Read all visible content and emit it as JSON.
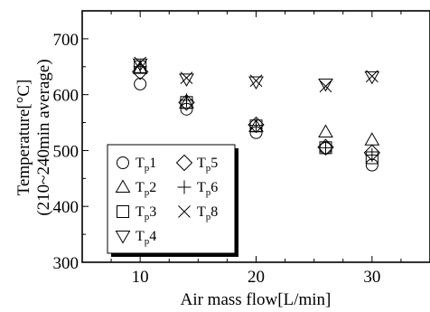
{
  "chart_data": {
    "type": "scatter",
    "xlabel": "Air mass flow[L/min]",
    "ylabel_line1": "Temperature[°C]",
    "ylabel_line2": "(210~240min average)",
    "xlim": [
      5,
      35
    ],
    "ylim": [
      300,
      750
    ],
    "xticks": [
      10,
      20,
      30
    ],
    "yticks": [
      300,
      400,
      500,
      600,
      700
    ],
    "grid": false,
    "legend_position": "bottom-left",
    "series": [
      {
        "name": "Tp1",
        "label_main": "T",
        "label_sub": "p",
        "label_num": "1",
        "marker": "circle",
        "x": [
          10,
          14,
          20,
          26,
          30
        ],
        "y": [
          619,
          574,
          532,
          504,
          474
        ]
      },
      {
        "name": "Tp2",
        "label_main": "T",
        "label_sub": "p",
        "label_num": "2",
        "marker": "triangle-up",
        "x": [
          10,
          14,
          20,
          26,
          30
        ],
        "y": [
          647,
          585,
          543,
          533,
          519
        ]
      },
      {
        "name": "Tp3",
        "label_main": "T",
        "label_sub": "p",
        "label_num": "3",
        "marker": "square",
        "x": [
          10,
          14,
          20,
          26,
          30
        ],
        "y": [
          650,
          586,
          544,
          505,
          487
        ]
      },
      {
        "name": "Tp4",
        "label_main": "T",
        "label_sub": "p",
        "label_num": "4",
        "marker": "triangle-down",
        "x": [
          10,
          14,
          20,
          26,
          30
        ],
        "y": [
          655,
          628,
          623,
          619,
          632
        ]
      },
      {
        "name": "Tp5",
        "label_main": "T",
        "label_sub": "p",
        "label_num": "5",
        "marker": "diamond",
        "x": [
          10,
          14,
          20,
          26,
          30
        ],
        "y": [
          641,
          586,
          546,
          506,
          496
        ]
      },
      {
        "name": "Tp6",
        "label_main": "T",
        "label_sub": "p",
        "label_num": "6",
        "marker": "plus",
        "x": [
          10,
          14,
          20,
          26,
          30
        ],
        "y": [
          650,
          590,
          545,
          505,
          492
        ]
      },
      {
        "name": "Tp8",
        "label_main": "T",
        "label_sub": "p",
        "label_num": "8",
        "marker": "x",
        "x": [
          10,
          14,
          20,
          26,
          30
        ],
        "y": [
          657,
          630,
          625,
          615,
          633
        ]
      }
    ],
    "legend_order": [
      0,
      4,
      1,
      5,
      2,
      6,
      3
    ]
  }
}
